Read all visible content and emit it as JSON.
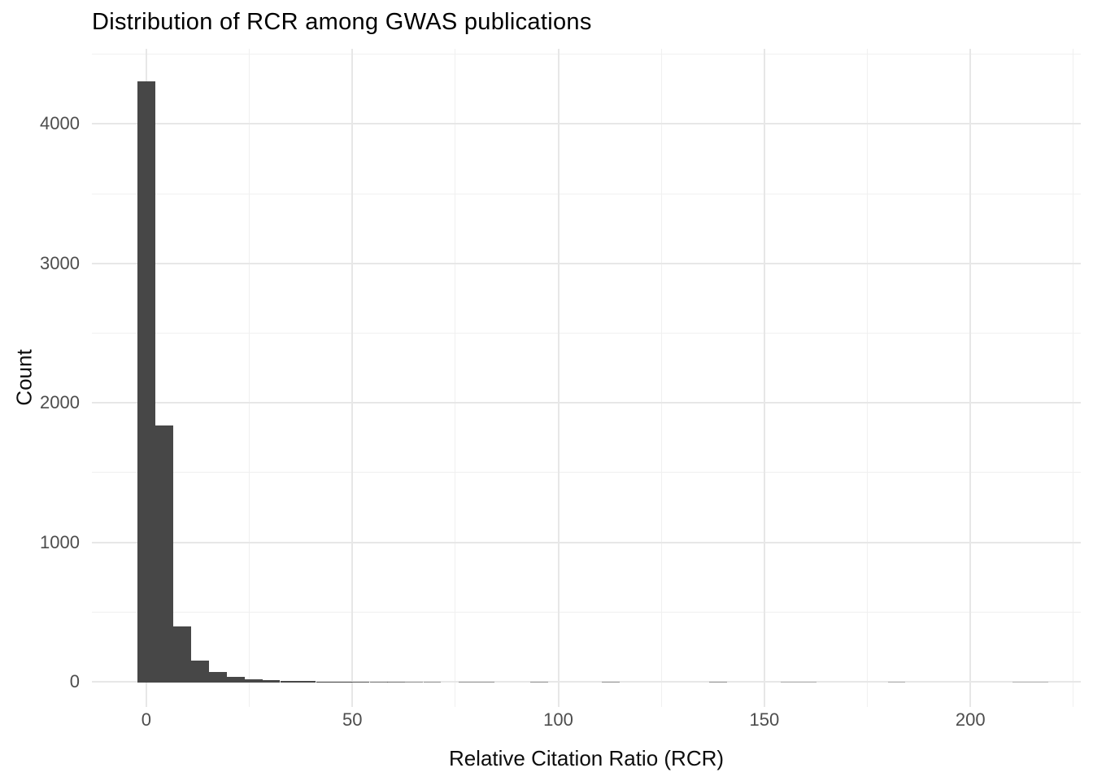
{
  "chart_data": {
    "type": "bar",
    "subtype": "histogram",
    "title": "Distribution of RCR among GWAS publications",
    "xlabel": "Relative Citation Ratio (RCR)",
    "ylabel": "Count",
    "legend": "none",
    "grid": "major+minor",
    "bin_width": 4.335,
    "bin_centers": [
      0,
      4.3,
      8.7,
      13.0,
      17.3,
      21.7,
      26.0,
      30.3,
      34.7,
      39.0,
      43.4,
      47.7,
      52.0,
      56.4,
      60.7,
      65.0,
      69.4,
      73.7,
      78.0,
      82.4,
      86.7,
      91.0,
      95.4,
      99.7,
      104.0,
      108.4,
      112.7,
      117.1,
      121.4,
      125.7,
      130.1,
      134.4,
      138.7,
      143.1,
      147.4,
      151.7,
      156.1,
      160.4,
      164.7,
      169.1,
      173.4,
      177.8,
      182.1,
      186.4,
      190.8,
      195.1,
      199.4,
      203.8,
      208.1,
      212.4,
      216.8
    ],
    "counts": [
      4310,
      1845,
      403,
      158,
      76,
      41,
      25,
      17,
      13,
      10,
      8,
      6,
      5,
      4,
      4,
      3,
      3,
      0,
      3,
      3,
      0,
      0,
      3,
      0,
      0,
      0,
      3,
      0,
      0,
      0,
      0,
      0,
      3,
      0,
      0,
      0,
      2,
      2,
      0,
      0,
      0,
      0,
      2,
      0,
      0,
      0,
      0,
      0,
      0,
      1,
      1
    ],
    "x_ticks_major": [
      0,
      50,
      100,
      150,
      200
    ],
    "x_tick_labels": [
      "0",
      "50",
      "100",
      "150",
      "200"
    ],
    "x_ticks_minor": [
      25,
      75,
      125,
      175,
      225
    ],
    "y_ticks_major": [
      0,
      1000,
      2000,
      3000,
      4000
    ],
    "y_tick_labels": [
      "0",
      "1000",
      "2000",
      "3000",
      "4000"
    ],
    "y_ticks_minor": [
      500,
      1500,
      2500,
      3500,
      4500
    ],
    "xlim": [
      -13.2,
      226.8
    ],
    "ylim": [
      -181,
      4539
    ],
    "colors": {
      "bar_fill": "#474747",
      "grid_major": "#e7e7e7",
      "grid_minor": "#f0f0f0",
      "tick_label": "#4d4d4d",
      "title": "#000000",
      "axis_title": "#0d0d0d",
      "background": "#ffffff"
    }
  }
}
